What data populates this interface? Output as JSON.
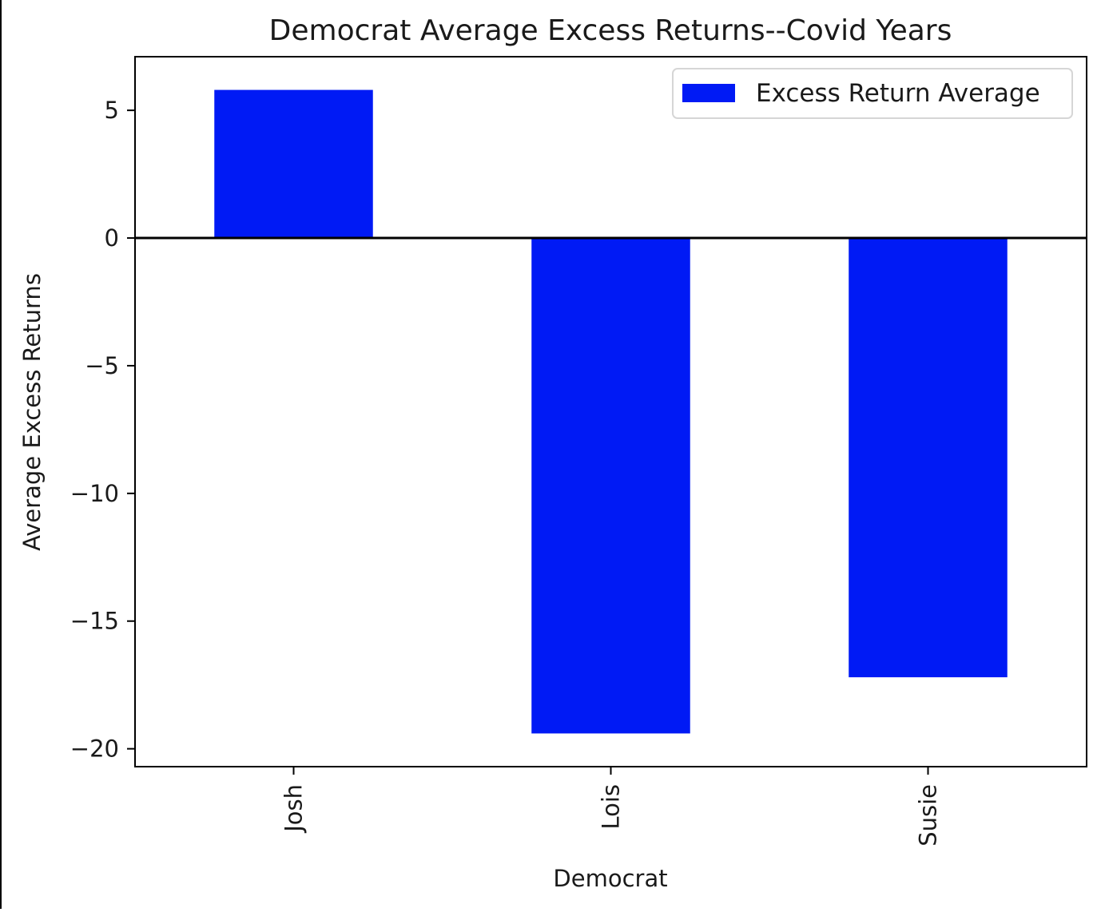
{
  "chart_data": {
    "type": "bar",
    "title": "Democrat Average Excess Returns--Covid Years",
    "xlabel": "Democrat",
    "ylabel": "Average Excess Returns",
    "categories": [
      "Josh",
      "Lois",
      "Susie"
    ],
    "series": [
      {
        "name": "Excess Return Average",
        "values": [
          5.8,
          -19.4,
          -17.2
        ],
        "color": "#001af5"
      }
    ],
    "ylim": [
      -20.7,
      7.1
    ],
    "yticks": [
      5,
      0,
      -5,
      -10,
      -15,
      -20
    ],
    "ytick_labels": [
      "5",
      "0",
      "−5",
      "−10",
      "−15",
      "−20"
    ],
    "zero_line": true,
    "grid": false,
    "legend_position": "top-right"
  }
}
